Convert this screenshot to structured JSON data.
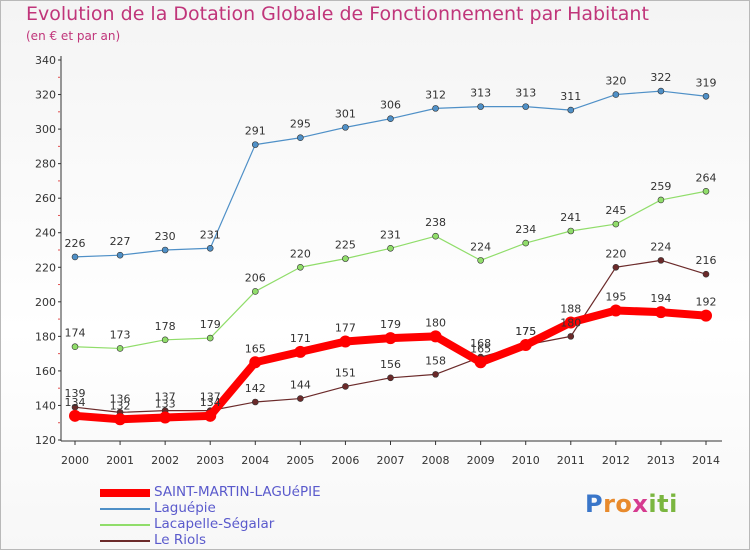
{
  "header": {
    "title": "Evolution de la Dotation Globale de Fonctionnement par Habitant",
    "subtitle": "(en € et par an)"
  },
  "logo": {
    "text": "Proxiti"
  },
  "chart_data": {
    "type": "line",
    "title": "Evolution de la Dotation Globale de Fonctionnement par Habitant",
    "subtitle": "(en € et par an)",
    "xlabel": "",
    "ylabel": "",
    "x": [
      "2000",
      "2001",
      "2002",
      "2003",
      "2004",
      "2005",
      "2006",
      "2007",
      "2008",
      "2009",
      "2010",
      "2011",
      "2012",
      "2013",
      "2014"
    ],
    "ylim": [
      120,
      340
    ],
    "yticks": [
      "120",
      "140",
      "160",
      "180",
      "200",
      "220",
      "240",
      "260",
      "280",
      "300",
      "320",
      "340"
    ],
    "grid": false,
    "legend": "bottom-left",
    "series": [
      {
        "name": "Laguépie",
        "color": "#4f90c7",
        "width": 1.2,
        "values": [
          226,
          227,
          230,
          231,
          291,
          295,
          301,
          306,
          312,
          313,
          313,
          311,
          320,
          322,
          319
        ],
        "labels": [
          "226",
          "227",
          "230",
          "231",
          "291",
          "295",
          "301",
          "306",
          "312",
          "313",
          "313",
          "311",
          "320",
          "322",
          "319"
        ]
      },
      {
        "name": "Lacapelle-Ségalar",
        "color": "#90dd6a",
        "width": 1.2,
        "values": [
          174,
          173,
          178,
          179,
          206,
          220,
          225,
          231,
          238,
          224,
          234,
          241,
          245,
          259,
          264
        ],
        "labels": [
          "174",
          "173",
          "178",
          "179",
          "206",
          "220",
          "225",
          "231",
          "238",
          "224",
          "234",
          "241",
          "245",
          "259",
          "264"
        ]
      },
      {
        "name": "Le Riols",
        "color": "#6b2a2a",
        "width": 1.2,
        "values": [
          139,
          136,
          137,
          137,
          142,
          144,
          151,
          156,
          158,
          168,
          175,
          180,
          220,
          224,
          216
        ],
        "labels": [
          "139",
          "136",
          "137",
          "137",
          "142",
          "144",
          "151",
          "156",
          "158",
          "168",
          "175",
          "180",
          "220",
          "224",
          "216"
        ]
      },
      {
        "name": "SAINT-MARTIN-LAGUéPIE",
        "color": "#ff0000",
        "width": 8,
        "values": [
          134,
          132,
          133,
          134,
          165,
          171,
          177,
          179,
          180,
          165,
          175,
          188,
          195,
          194,
          192
        ],
        "labels": [
          "134",
          "132",
          "133",
          "134",
          "165",
          "171",
          "177",
          "179",
          "180",
          "165",
          "175",
          "188",
          "195",
          "194",
          "192"
        ]
      }
    ],
    "legend_order": [
      3,
      0,
      1,
      2
    ]
  }
}
